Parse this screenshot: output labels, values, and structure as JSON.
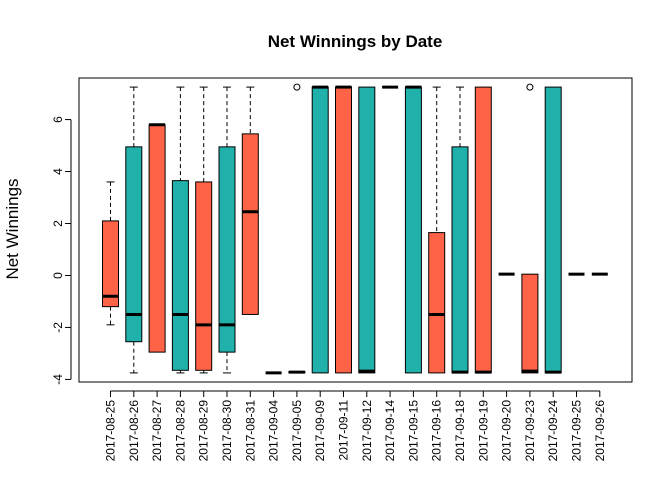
{
  "chart_data": {
    "type": "boxplot",
    "title": "Net Winnings by Date",
    "xlabel": "",
    "ylabel": "Net Winnings",
    "ylim": [
      -4.1,
      7.6
    ],
    "yticks": [
      -4,
      -2,
      0,
      2,
      4,
      6
    ],
    "grid": false,
    "legend": "none",
    "colors": {
      "coral": "#FF6347",
      "teal": "#20B2AA"
    },
    "categories": [
      "2017-08-25",
      "2017-08-26",
      "2017-08-27",
      "2017-08-28",
      "2017-08-29",
      "2017-08-30",
      "2017-08-31",
      "2017-09-04",
      "2017-09-05",
      "2017-09-09",
      "2017-09-11",
      "2017-09-12",
      "2017-09-14",
      "2017-09-15",
      "2017-09-16",
      "2017-09-18",
      "2017-09-19",
      "2017-09-20",
      "2017-09-23",
      "2017-09-24",
      "2017-09-25",
      "2017-09-26"
    ],
    "boxes": [
      {
        "min": -1.9,
        "q1": -1.2,
        "median": -0.8,
        "q3": 2.1,
        "max": 3.6,
        "color": "coral",
        "outliers": []
      },
      {
        "min": -3.75,
        "q1": -2.55,
        "median": -1.5,
        "q3": 4.95,
        "max": 7.25,
        "color": "teal",
        "outliers": []
      },
      {
        "min": -2.95,
        "q1": -2.95,
        "median": 5.8,
        "q3": 5.8,
        "max": 5.8,
        "color": "coral",
        "outliers": []
      },
      {
        "min": -3.75,
        "q1": -3.65,
        "median": -1.5,
        "q3": 3.65,
        "max": 7.25,
        "color": "teal",
        "outliers": []
      },
      {
        "min": -3.75,
        "q1": -3.65,
        "median": -1.9,
        "q3": 3.6,
        "max": 7.25,
        "color": "coral",
        "outliers": []
      },
      {
        "min": -3.75,
        "q1": -2.95,
        "median": -1.9,
        "q3": 4.95,
        "max": 7.25,
        "color": "teal",
        "outliers": []
      },
      {
        "min": -1.5,
        "q1": -1.5,
        "median": 2.45,
        "q3": 5.45,
        "max": 7.25,
        "color": "coral",
        "outliers": []
      },
      {
        "min": -3.75,
        "q1": -3.75,
        "median": -3.75,
        "q3": -3.75,
        "max": -3.75,
        "color": "teal",
        "outliers": []
      },
      {
        "min": -3.75,
        "q1": -3.75,
        "median": -3.72,
        "q3": -3.7,
        "max": -3.7,
        "color": "coral",
        "outliers": [
          7.25
        ]
      },
      {
        "min": -3.75,
        "q1": -3.75,
        "median": 7.25,
        "q3": 7.25,
        "max": 7.25,
        "color": "teal",
        "outliers": []
      },
      {
        "min": -3.75,
        "q1": -3.75,
        "median": 7.25,
        "q3": 7.25,
        "max": 7.25,
        "color": "coral",
        "outliers": []
      },
      {
        "min": -3.75,
        "q1": -3.75,
        "median": -3.68,
        "q3": 7.25,
        "max": 7.25,
        "color": "teal",
        "outliers": []
      },
      {
        "min": 7.25,
        "q1": 7.25,
        "median": 7.25,
        "q3": 7.25,
        "max": 7.25,
        "color": "coral",
        "outliers": []
      },
      {
        "min": -3.75,
        "q1": -3.75,
        "median": 7.25,
        "q3": 7.25,
        "max": 7.25,
        "color": "teal",
        "outliers": []
      },
      {
        "min": -3.75,
        "q1": -3.75,
        "median": -1.5,
        "q3": 1.65,
        "max": 7.25,
        "color": "coral",
        "outliers": []
      },
      {
        "min": -3.75,
        "q1": -3.75,
        "median": -3.72,
        "q3": 4.95,
        "max": 7.25,
        "color": "teal",
        "outliers": []
      },
      {
        "min": -3.75,
        "q1": -3.75,
        "median": -3.72,
        "q3": 7.25,
        "max": 7.25,
        "color": "coral",
        "outliers": []
      },
      {
        "min": 0.05,
        "q1": 0.05,
        "median": 0.05,
        "q3": 0.05,
        "max": 0.05,
        "color": "teal",
        "outliers": []
      },
      {
        "min": -3.75,
        "q1": -3.75,
        "median": -3.68,
        "q3": 0.05,
        "max": 0.05,
        "color": "coral",
        "outliers": [
          7.25
        ]
      },
      {
        "min": -3.75,
        "q1": -3.75,
        "median": -3.72,
        "q3": 7.25,
        "max": 7.25,
        "color": "teal",
        "outliers": []
      },
      {
        "min": 0.05,
        "q1": 0.05,
        "median": 0.05,
        "q3": 0.05,
        "max": 0.05,
        "color": "coral",
        "outliers": []
      },
      {
        "min": 0.05,
        "q1": 0.05,
        "median": 0.05,
        "q3": 0.05,
        "max": 0.05,
        "color": "teal",
        "outliers": []
      }
    ]
  }
}
